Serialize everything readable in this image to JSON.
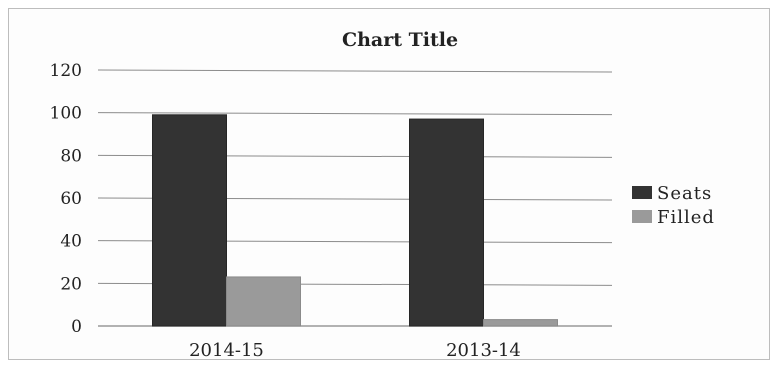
{
  "chart_data": {
    "type": "bar",
    "title": "Chart Title",
    "categories": [
      "2014-15",
      "2013-14"
    ],
    "series": [
      {
        "name": "Seats",
        "values": [
          99,
          97
        ],
        "color": "#333333"
      },
      {
        "name": "Filled",
        "values": [
          23,
          3
        ],
        "color": "#9a9a9a"
      }
    ],
    "ylim": [
      0,
      120
    ],
    "yticks": [
      0,
      20,
      40,
      60,
      80,
      100,
      120
    ],
    "grid": true,
    "legend_position": "right"
  }
}
